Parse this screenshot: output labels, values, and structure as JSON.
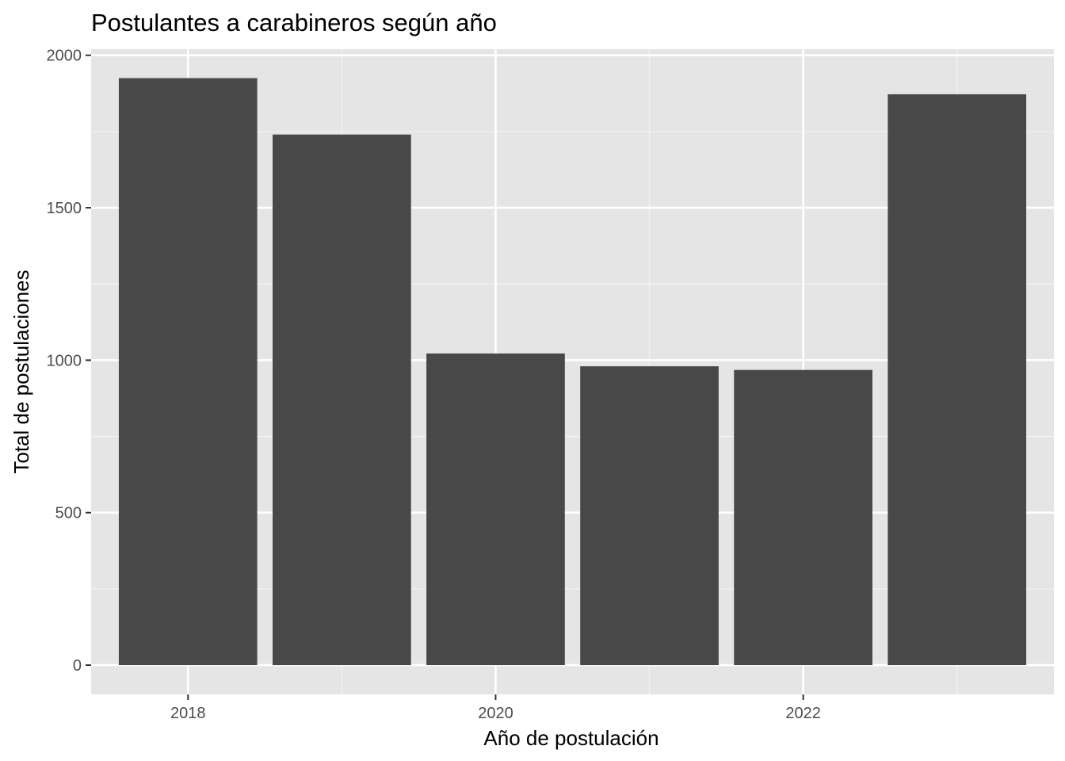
{
  "chart_data": {
    "type": "bar",
    "title": "Postulantes a carabineros según año",
    "xlabel": "Año de postulación",
    "ylabel": "Total de postulaciones",
    "x": [
      2018,
      2019,
      2020,
      2021,
      2022,
      2023
    ],
    "values": [
      1925,
      1740,
      1022,
      980,
      968,
      1872
    ],
    "xlim": [
      2017.37,
      2023.63
    ],
    "ylim": [
      -96,
      2020
    ],
    "x_ticks": [
      2018,
      2020,
      2022
    ],
    "x_tick_labels": [
      "2018",
      "2020",
      "2022"
    ],
    "y_ticks": [
      0,
      500,
      1000,
      1500,
      2000
    ],
    "y_tick_labels": [
      "0",
      "500",
      "1000",
      "1500",
      "2000"
    ],
    "grid": true,
    "legend": "none",
    "colors": {
      "bar": "#484848",
      "panel_background": "#E5E5E5",
      "grid_major": "#FFFFFF",
      "grid_minor": "#F2F2F2",
      "axis_tick": "#333333",
      "tick_text": "#4D4D4D",
      "text": "#000000"
    }
  }
}
